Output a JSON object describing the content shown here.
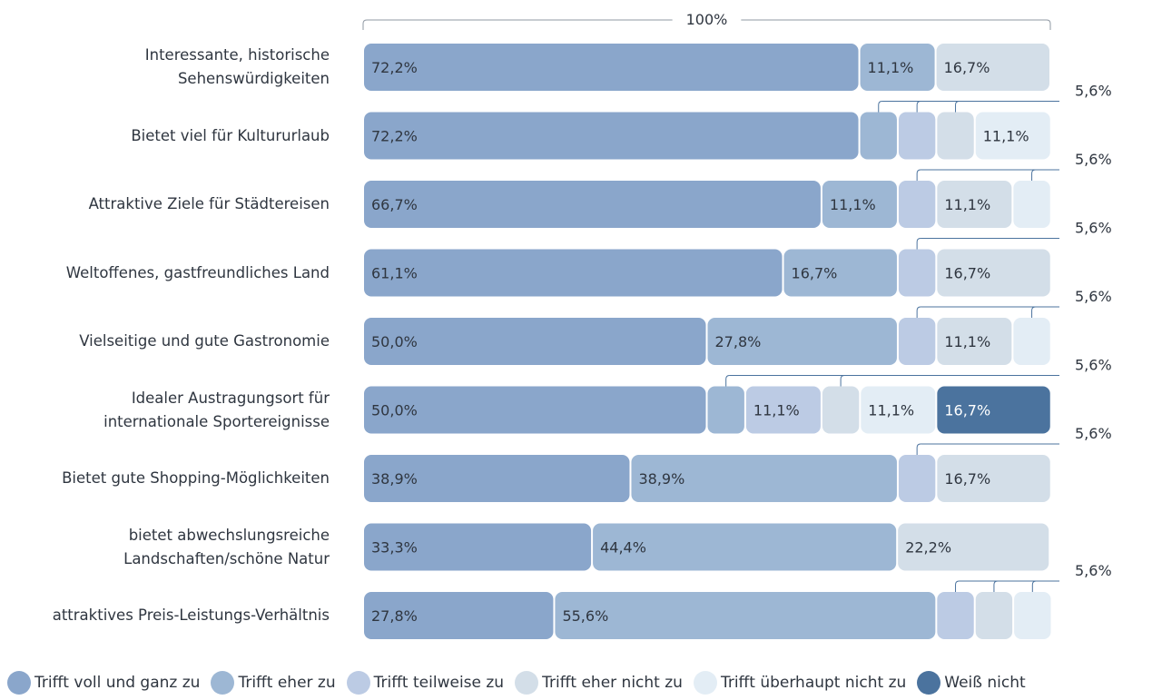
{
  "chart_data": {
    "type": "bar",
    "orientation": "horizontal",
    "stacked": true,
    "total_label": "100%",
    "callout_label": "5,6%",
    "categories": [
      "Interessante, historische Sehenswürdigkeiten",
      "Bietet viel für Kultururlaub",
      "Attraktive Ziele für Städtereisen",
      "Weltoffenes, gastfreundliches Land",
      "Vielseitige und gute Gastronomie",
      "Idealer Austragungsort für internationale Sportereignisse",
      "Bietet gute Shopping-Möglichkeiten",
      "bietet abwechslungsreiche Landschaften/schöne Natur",
      "attraktives Preis-Leistungs-Verhältnis"
    ],
    "category_lines": [
      [
        "Interessante, historische",
        "Sehenswürdigkeiten"
      ],
      [
        "Bietet viel für Kultururlaub"
      ],
      [
        "Attraktive Ziele für Städtereisen"
      ],
      [
        "Weltoffenes, gastfreundliches Land"
      ],
      [
        "Vielseitige und gute Gastronomie"
      ],
      [
        "Idealer Austragungsort für",
        "internationale Sportereignisse"
      ],
      [
        "Bietet gute Shopping-Möglichkeiten"
      ],
      [
        "bietet abwechslungsreiche",
        "Landschaften/schöne Natur"
      ],
      [
        "attraktives Preis-Leistungs-Verhältnis"
      ]
    ],
    "series": [
      {
        "name": "Trifft voll und ganz zu",
        "color": "#8aa6cb",
        "values": [
          72.2,
          72.2,
          66.7,
          61.1,
          50.0,
          50.0,
          38.9,
          33.3,
          27.8
        ]
      },
      {
        "name": "Trifft eher zu",
        "color": "#9db7d4",
        "values": [
          11.1,
          5.6,
          11.1,
          16.7,
          27.8,
          5.6,
          38.9,
          44.4,
          55.6
        ]
      },
      {
        "name": "Trifft teilweise zu",
        "color": "#bccbe4",
        "values": [
          0,
          5.6,
          5.6,
          5.6,
          5.6,
          11.1,
          5.6,
          0,
          5.6
        ]
      },
      {
        "name": "Trifft eher nicht zu",
        "color": "#d3dee8",
        "values": [
          16.7,
          5.6,
          11.1,
          16.7,
          11.1,
          5.6,
          16.7,
          22.2,
          5.6
        ]
      },
      {
        "name": "Trifft überhaupt nicht zu",
        "color": "#e3edf5",
        "values": [
          0,
          11.1,
          5.6,
          0,
          5.6,
          11.1,
          0,
          0,
          5.6
        ]
      },
      {
        "name": "Weiß nicht",
        "color": "#4b739e",
        "values": [
          0,
          0,
          0,
          0,
          0,
          16.7,
          0,
          0,
          0
        ]
      }
    ],
    "segment_labels": [
      [
        "72,2%",
        "11,1%",
        "",
        "16,7%",
        "",
        ""
      ],
      [
        "72,2%",
        "",
        "",
        "",
        "11,1%",
        ""
      ],
      [
        "66,7%",
        "11,1%",
        "",
        "11,1%",
        "",
        ""
      ],
      [
        "61,1%",
        "16,7%",
        "",
        "16,7%",
        "",
        ""
      ],
      [
        "50,0%",
        "27,8%",
        "",
        "11,1%",
        "",
        ""
      ],
      [
        "50,0%",
        "",
        "11,1%",
        "",
        "11,1%",
        "16,7%"
      ],
      [
        "38,9%",
        "38,9%",
        "",
        "16,7%",
        "",
        ""
      ],
      [
        "33,3%",
        "44,4%",
        "",
        "22,2%",
        "",
        ""
      ],
      [
        "27,8%",
        "55,6%",
        "",
        "",
        "",
        ""
      ]
    ],
    "xlim": [
      0,
      100
    ],
    "legend_position": "bottom"
  }
}
